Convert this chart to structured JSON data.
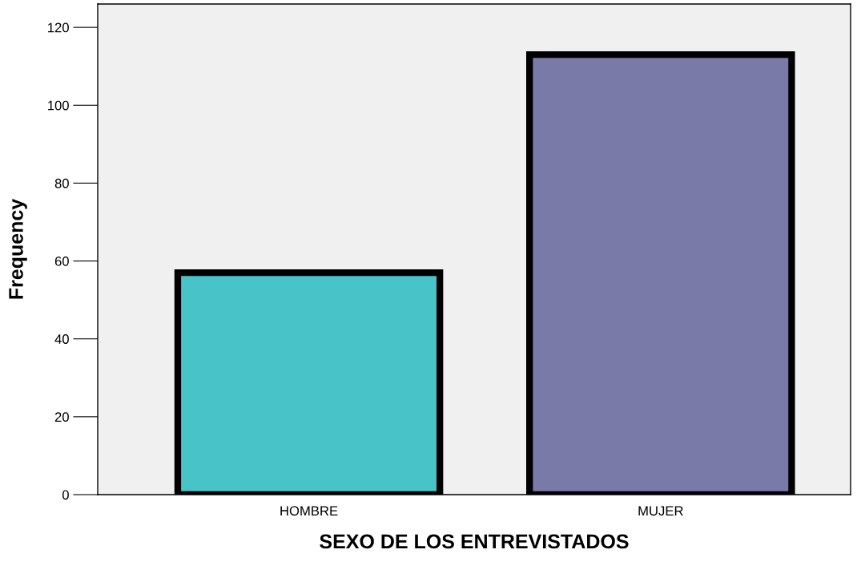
{
  "chart_data": {
    "type": "bar",
    "xlabel": "SEXO DE LOS ENTREVISTADOS",
    "ylabel": "Frequency",
    "categories": [
      "HOMBRE",
      "MUJER"
    ],
    "values": [
      57,
      113
    ],
    "colors": [
      "#48c3c8",
      "#7a7aa8"
    ],
    "ylim": [
      0,
      126
    ],
    "yticks": [
      0,
      20,
      40,
      60,
      80,
      100,
      120
    ],
    "grid": false
  }
}
